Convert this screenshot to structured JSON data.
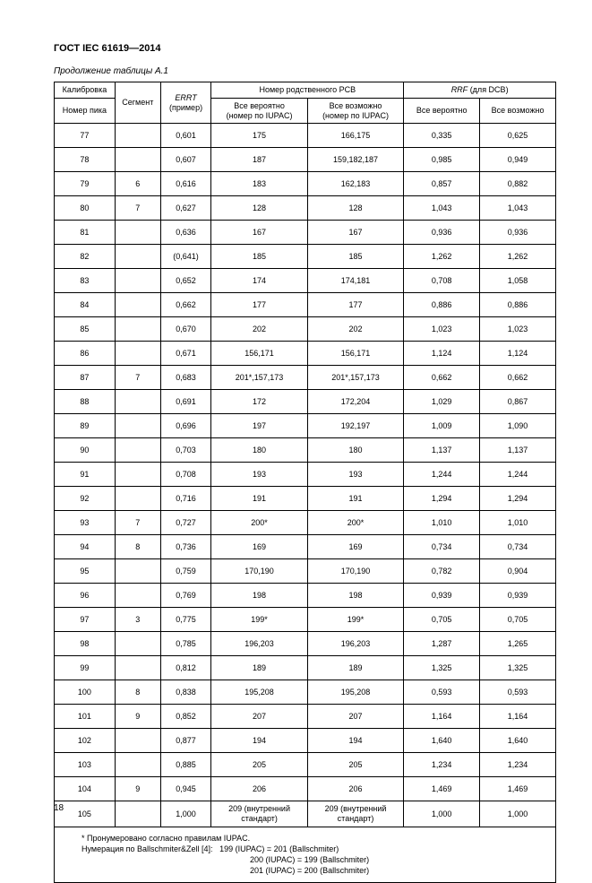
{
  "doc_title": "ГОСТ IEC 61619—2014",
  "caption": "Продолжение таблицы А.1",
  "page_number": "18",
  "head": {
    "cal": "Калибровка",
    "seg": "Сегмент",
    "errt": "ERRT",
    "errt_sub": "(пример)",
    "pcb_group": "Номер родственного PCB",
    "rrf_group": "RRF (для DCB)",
    "rrf_group_prefix": "RRF",
    "rrf_group_suffix": " (для DCB)",
    "peak_no": "Номер пика",
    "prob": "Все вероятно",
    "prob_iupac": "(номер по IUPAC)",
    "poss": "Все возможно",
    "poss_iupac": "(номер по IUPAC)",
    "rrf_prob": "Все вероятно",
    "rrf_poss": "Все возможно"
  },
  "rows": [
    {
      "n": "77",
      "seg": "",
      "errt": "0,601",
      "p": "175",
      "q": "166,175",
      "r1": "0,335",
      "r2": "0,625"
    },
    {
      "n": "78",
      "seg": "",
      "errt": "0,607",
      "p": "187",
      "q": "159,182,187",
      "r1": "0,985",
      "r2": "0,949"
    },
    {
      "n": "79",
      "seg": "6",
      "errt": "0,616",
      "p": "183",
      "q": "162,183",
      "r1": "0,857",
      "r2": "0,882"
    },
    {
      "n": "80",
      "seg": "7",
      "errt": "0,627",
      "p": "128",
      "q": "128",
      "r1": "1,043",
      "r2": "1,043"
    },
    {
      "n": "81",
      "seg": "",
      "errt": "0,636",
      "p": "167",
      "q": "167",
      "r1": "0,936",
      "r2": "0,936"
    },
    {
      "n": "82",
      "seg": "",
      "errt": "(0,641)",
      "p": "185",
      "q": "185",
      "r1": "1,262",
      "r2": "1,262"
    },
    {
      "n": "83",
      "seg": "",
      "errt": "0,652",
      "p": "174",
      "q": "174,181",
      "r1": "0,708",
      "r2": "1,058"
    },
    {
      "n": "84",
      "seg": "",
      "errt": "0,662",
      "p": "177",
      "q": "177",
      "r1": "0,886",
      "r2": "0,886"
    },
    {
      "n": "85",
      "seg": "",
      "errt": "0,670",
      "p": "202",
      "q": "202",
      "r1": "1,023",
      "r2": "1,023"
    },
    {
      "n": "86",
      "seg": "",
      "errt": "0,671",
      "p": "156,171",
      "q": "156,171",
      "r1": "1,124",
      "r2": "1,124"
    },
    {
      "n": "87",
      "seg": "7",
      "errt": "0,683",
      "p": "201*,157,173",
      "q": "201*,157,173",
      "r1": "0,662",
      "r2": "0,662"
    },
    {
      "n": "88",
      "seg": "",
      "errt": "0,691",
      "p": "172",
      "q": "172,204",
      "r1": "1,029",
      "r2": "0,867"
    },
    {
      "n": "89",
      "seg": "",
      "errt": "0,696",
      "p": "197",
      "q": "192,197",
      "r1": "1,009",
      "r2": "1,090"
    },
    {
      "n": "90",
      "seg": "",
      "errt": "0,703",
      "p": "180",
      "q": "180",
      "r1": "1,137",
      "r2": "1,137"
    },
    {
      "n": "91",
      "seg": "",
      "errt": "0,708",
      "p": "193",
      "q": "193",
      "r1": "1,244",
      "r2": "1,244"
    },
    {
      "n": "92",
      "seg": "",
      "errt": "0,716",
      "p": "191",
      "q": "191",
      "r1": "1,294",
      "r2": "1,294"
    },
    {
      "n": "93",
      "seg": "7",
      "errt": "0,727",
      "p": "200*",
      "q": "200*",
      "r1": "1,010",
      "r2": "1,010"
    },
    {
      "n": "94",
      "seg": "8",
      "errt": "0,736",
      "p": "169",
      "q": "169",
      "r1": "0,734",
      "r2": "0,734"
    },
    {
      "n": "95",
      "seg": "",
      "errt": "0,759",
      "p": "170,190",
      "q": "170,190",
      "r1": "0,782",
      "r2": "0,904"
    },
    {
      "n": "96",
      "seg": "",
      "errt": "0,769",
      "p": "198",
      "q": "198",
      "r1": "0,939",
      "r2": "0,939"
    },
    {
      "n": "97",
      "seg": "3",
      "errt": "0,775",
      "p": "199*",
      "q": "199*",
      "r1": "0,705",
      "r2": "0,705"
    },
    {
      "n": "98",
      "seg": "",
      "errt": "0,785",
      "p": "196,203",
      "q": "196,203",
      "r1": "1,287",
      "r2": "1,265"
    },
    {
      "n": "99",
      "seg": "",
      "errt": "0,812",
      "p": "189",
      "q": "189",
      "r1": "1,325",
      "r2": "1,325"
    },
    {
      "n": "100",
      "seg": "8",
      "errt": "0,838",
      "p": "195,208",
      "q": "195,208",
      "r1": "0,593",
      "r2": "0,593"
    },
    {
      "n": "101",
      "seg": "9",
      "errt": "0,852",
      "p": "207",
      "q": "207",
      "r1": "1,164",
      "r2": "1,164"
    },
    {
      "n": "102",
      "seg": "",
      "errt": "0,877",
      "p": "194",
      "q": "194",
      "r1": "1,640",
      "r2": "1,640"
    },
    {
      "n": "103",
      "seg": "",
      "errt": "0,885",
      "p": "205",
      "q": "205",
      "r1": "1,234",
      "r2": "1,234"
    },
    {
      "n": "104",
      "seg": "9",
      "errt": "0,945",
      "p": "206",
      "q": "206",
      "r1": "1,469",
      "r2": "1,469"
    },
    {
      "n": "105",
      "seg": "",
      "errt": "1,000",
      "p": "209 (внутренний стандарт)",
      "q": "209 (внутренний стандарт)",
      "r1": "1,000",
      "r2": "1,000"
    }
  ],
  "footnote": {
    "l1": "* Пронумеровано согласно правилам IUPAC.",
    "l2": "Нумерация по Ballschmiter&Zell [4]:   199 (IUPAC) = 201 (Ballschmiter)",
    "l3": "200 (IUPAC) = 199 (Ballschmiter)",
    "l4": "201 (IUPAC) = 200 (Ballschmiter)"
  }
}
